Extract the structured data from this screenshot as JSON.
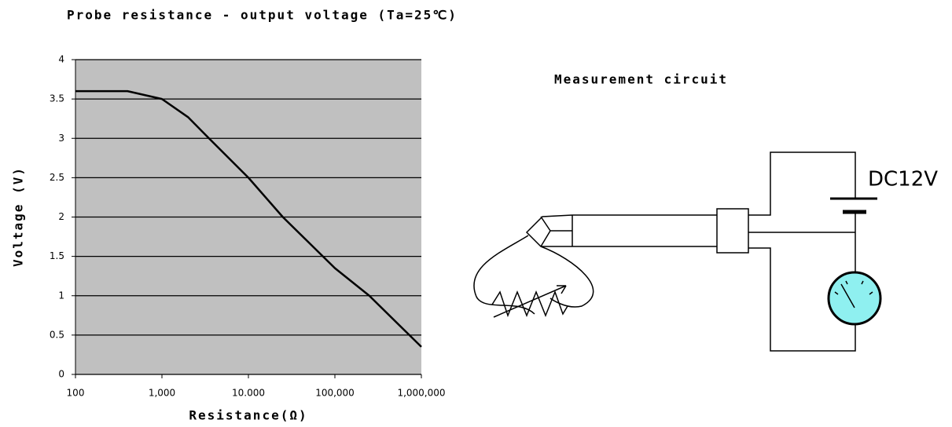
{
  "chart_data": {
    "type": "line",
    "title": "Probe resistance - output voltage (Ta=25℃)",
    "xlabel": "Resistance(Ω)",
    "ylabel": "Voltage (V)",
    "x": [
      100,
      400,
      1000,
      2000,
      3500,
      10000,
      25000,
      100000,
      250000,
      1000000
    ],
    "values": [
      3.6,
      3.6,
      3.5,
      3.27,
      3.0,
      2.5,
      2.0,
      1.35,
      1.0,
      0.35
    ],
    "color": "#000000",
    "background": "#c0c0c0",
    "xscale": "log",
    "grid": true,
    "xlim": [
      100,
      1000000
    ],
    "xticks": [
      100,
      {
        "value": 1000,
        "label": "1,000"
      },
      {
        "value": 10000,
        "label": "10.000"
      },
      {
        "value": 100000,
        "label": "100,000"
      },
      {
        "value": 1000000,
        "label": "1,000,000"
      }
    ],
    "ylim": [
      0,
      4
    ],
    "yticks": [
      0,
      0.5,
      1,
      1.5,
      2,
      2.5,
      3,
      3.5,
      4
    ]
  },
  "circuit": {
    "title": "Measurement circuit",
    "supply_label": "DC12V"
  }
}
